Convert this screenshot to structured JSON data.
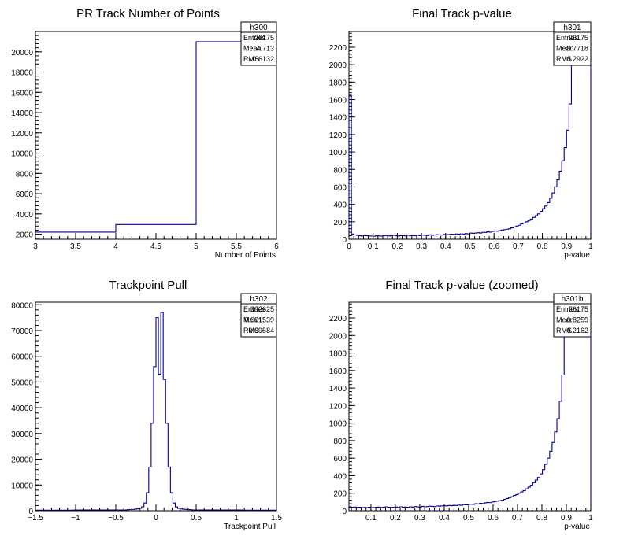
{
  "line_color": "#000099",
  "chart_data": [
    {
      "type": "bar",
      "title": "PR Track Number of Points",
      "xlabel": "Number of Points",
      "ylabel": "",
      "xlim": [
        3,
        6
      ],
      "ylim": [
        1500,
        22000
      ],
      "xticks": [
        3,
        3.5,
        4,
        4.5,
        5,
        5.5,
        6
      ],
      "xtick_labels": [
        "3",
        "3.5",
        "4",
        "4.5",
        "5",
        "5.5",
        "6"
      ],
      "yticks": [
        2000,
        4000,
        6000,
        8000,
        10000,
        12000,
        14000,
        16000,
        18000,
        20000
      ],
      "ytick_labels": [
        "2000",
        "4000",
        "6000",
        "8000",
        "10000",
        "12000",
        "14000",
        "16000",
        "18000",
        "20000"
      ],
      "bins": [
        [
          3,
          4,
          2200
        ],
        [
          4,
          5,
          2950
        ],
        [
          5,
          6,
          21000
        ]
      ],
      "stats": {
        "name": "h300",
        "rows": [
          [
            "Entries",
            "26175"
          ],
          [
            "Mean",
            "4.713"
          ],
          [
            "RMS",
            "0.6132"
          ]
        ]
      }
    },
    {
      "type": "bar",
      "title": "Final Track p-value",
      "xlabel": "p-value",
      "ylabel": "",
      "xlim": [
        0,
        1
      ],
      "ylim": [
        0,
        2380
      ],
      "xticks": [
        0,
        0.1,
        0.2,
        0.3,
        0.4,
        0.5,
        0.6,
        0.7,
        0.8,
        0.9,
        1
      ],
      "xtick_labels": [
        "0",
        "0.1",
        "0.2",
        "0.3",
        "0.4",
        "0.5",
        "0.6",
        "0.7",
        "0.8",
        "0.9",
        "1"
      ],
      "yticks": [
        0,
        200,
        400,
        600,
        800,
        1000,
        1200,
        1400,
        1600,
        1800,
        2000,
        2200
      ],
      "ytick_labels": [
        "0",
        "200",
        "400",
        "600",
        "800",
        "1000",
        "1200",
        "1400",
        "1600",
        "1800",
        "2000",
        "2200"
      ],
      "bin_width": 0.01,
      "values": [
        1650,
        60,
        50,
        45,
        40,
        38,
        42,
        40,
        38,
        36,
        35,
        40,
        38,
        37,
        40,
        42,
        38,
        40,
        45,
        40,
        38,
        40,
        42,
        38,
        45,
        40,
        42,
        40,
        45,
        42,
        48,
        45,
        42,
        50,
        45,
        48,
        52,
        50,
        48,
        55,
        52,
        55,
        58,
        55,
        60,
        58,
        62,
        60,
        65,
        62,
        70,
        68,
        72,
        75,
        72,
        80,
        78,
        85,
        82,
        90,
        95,
        92,
        100,
        105,
        110,
        115,
        120,
        130,
        140,
        150,
        160,
        175,
        185,
        200,
        215,
        230,
        250,
        270,
        290,
        320,
        350,
        380,
        420,
        470,
        530,
        600,
        680,
        780,
        900,
        1050,
        1250,
        1550,
        2000,
        2400,
        2400,
        2400,
        2400,
        2400,
        2400,
        2400
      ],
      "stats": {
        "name": "h301",
        "rows": [
          [
            "Entries",
            "26175"
          ],
          [
            "Mean",
            "0.7718"
          ],
          [
            "RMS",
            "0.2922"
          ]
        ]
      }
    },
    {
      "type": "bar",
      "title": "Trackpoint Pull",
      "xlabel": "Trackpoint Pull",
      "ylabel": "",
      "xlim": [
        -1.5,
        1.5
      ],
      "ylim": [
        0,
        81000
      ],
      "xticks": [
        -1.5,
        -1,
        -0.5,
        0,
        0.5,
        1,
        1.5
      ],
      "xtick_labels": [
        "−1.5",
        "−1",
        "−0.5",
        "0",
        "0.5",
        "1",
        "1.5"
      ],
      "yticks": [
        0,
        10000,
        20000,
        30000,
        40000,
        50000,
        60000,
        70000,
        80000
      ],
      "ytick_labels": [
        "0",
        "10000",
        "20000",
        "30000",
        "40000",
        "50000",
        "60000",
        "70000",
        "80000"
      ],
      "bin_width": 0.03,
      "bins_range": [
        -1.5,
        1.5
      ],
      "values": [
        200,
        200,
        200,
        200,
        200,
        200,
        200,
        200,
        200,
        200,
        200,
        200,
        200,
        200,
        200,
        200,
        300,
        300,
        300,
        300,
        300,
        300,
        300,
        300,
        300,
        300,
        300,
        300,
        300,
        300,
        300,
        300,
        300,
        300,
        300,
        300,
        300,
        300,
        400,
        500,
        500,
        600,
        700,
        900,
        1500,
        3000,
        7000,
        17000,
        34000,
        56000,
        75000,
        53000,
        77000,
        51000,
        34000,
        17000,
        7000,
        3000,
        1500,
        900,
        700,
        600,
        500,
        500,
        400,
        300,
        300,
        300,
        300,
        300,
        300,
        300,
        300,
        300,
        300,
        300,
        300,
        300,
        300,
        300,
        300,
        300,
        300,
        300,
        300,
        300,
        200,
        200,
        200,
        200,
        200,
        200,
        200,
        200,
        200,
        200,
        200,
        200,
        200,
        200
      ],
      "stats": {
        "name": "h302",
        "rows": [
          [
            "Entries",
            "392625"
          ],
          [
            "Mean",
            "−0.001539"
          ],
          [
            "RMS",
            "0.09584"
          ]
        ]
      }
    },
    {
      "type": "bar",
      "title": "Final Track p-value (zoomed)",
      "xlabel": "p-value",
      "ylabel": "",
      "xlim": [
        0.01,
        1
      ],
      "ylim": [
        0,
        2380
      ],
      "xticks": [
        0.1,
        0.2,
        0.3,
        0.4,
        0.5,
        0.6,
        0.7,
        0.8,
        0.9,
        1
      ],
      "xtick_labels": [
        "0.1",
        "0.2",
        "0.3",
        "0.4",
        "0.5",
        "0.6",
        "0.7",
        "0.8",
        "0.9",
        "1"
      ],
      "yticks": [
        0,
        200,
        400,
        600,
        800,
        1000,
        1200,
        1400,
        1600,
        1800,
        2000,
        2200
      ],
      "ytick_labels": [
        "0",
        "200",
        "400",
        "600",
        "800",
        "1000",
        "1200",
        "1400",
        "1600",
        "1800",
        "2000",
        "2200"
      ],
      "bin_width": 0.0099,
      "values": [
        45,
        40,
        42,
        38,
        40,
        36,
        38,
        35,
        40,
        38,
        37,
        40,
        42,
        38,
        40,
        45,
        40,
        38,
        40,
        42,
        38,
        45,
        40,
        42,
        40,
        45,
        42,
        48,
        45,
        42,
        50,
        45,
        48,
        52,
        50,
        48,
        55,
        52,
        55,
        58,
        55,
        60,
        58,
        62,
        60,
        65,
        62,
        70,
        68,
        72,
        75,
        72,
        80,
        78,
        85,
        82,
        90,
        95,
        92,
        100,
        105,
        110,
        115,
        120,
        130,
        140,
        150,
        160,
        175,
        185,
        200,
        215,
        230,
        250,
        270,
        290,
        320,
        350,
        380,
        420,
        470,
        530,
        600,
        680,
        780,
        900,
        1050,
        1250,
        1550,
        2000,
        2400,
        2400,
        2400,
        2400,
        2400,
        2400,
        2400,
        2400,
        2400,
        2400
      ],
      "stats": {
        "name": "h301b",
        "rows": [
          [
            "Entries",
            "26175"
          ],
          [
            "Mean",
            "0.8259"
          ],
          [
            "RMS",
            "0.2162"
          ]
        ]
      }
    }
  ]
}
